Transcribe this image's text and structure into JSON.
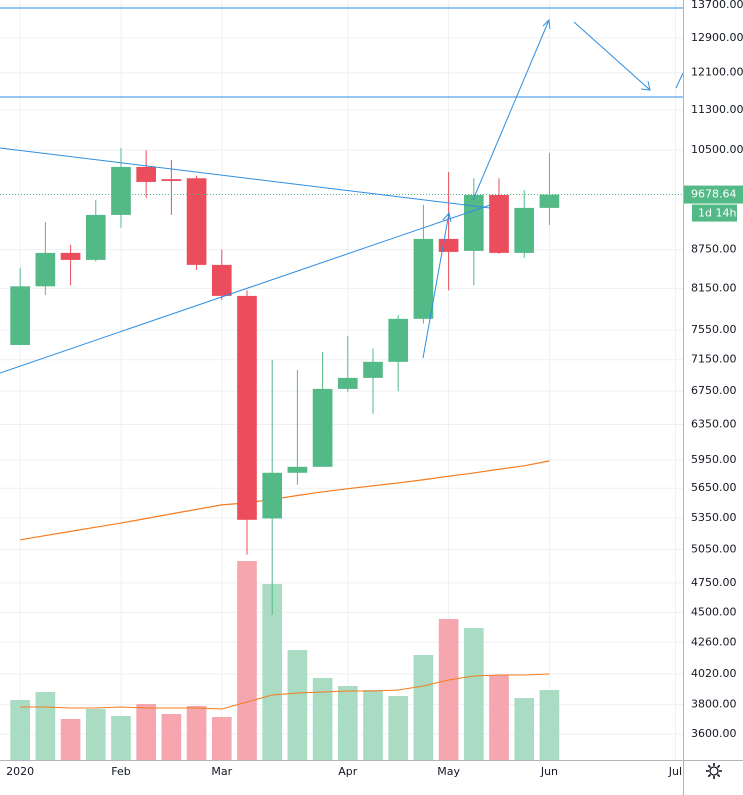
{
  "chart_data": {
    "type": "candlestick",
    "x": [
      0,
      1,
      2,
      3,
      4,
      5,
      6,
      7,
      8,
      9,
      10,
      11,
      12,
      13,
      14,
      15,
      16,
      17,
      18,
      19,
      20,
      21
    ],
    "open": [
      7346,
      8180,
      8697,
      8586,
      9324,
      10181,
      9955,
      9972,
      8508,
      8038,
      5345,
      5812,
      5876,
      6778,
      6916,
      7123,
      7707,
      8923,
      8729,
      9672,
      8697,
      9445
    ],
    "high": [
      8461,
      9205,
      8826,
      9585,
      10542,
      10500,
      10312,
      10022,
      8751,
      8120,
      7149,
      7019,
      7254,
      7469,
      7300,
      7760,
      9497,
      10089,
      9972,
      9972,
      9761,
      10446
    ],
    "low": [
      7346,
      8053,
      8195,
      8560,
      9104,
      9619,
      9324,
      8430,
      7980,
      5001,
      4480,
      5686,
      5876,
      6740,
      6475,
      6750,
      7640,
      8120,
      8195,
      8680,
      8617,
      9154
    ],
    "close": [
      8180,
      8697,
      8586,
      9324,
      10181,
      9905,
      9922,
      8508,
      8038,
      5332,
      5812,
      5876,
      6778,
      6916,
      7123,
      7707,
      8923,
      8713,
      9672,
      8697,
      9445,
      9678.64
    ],
    "volume": [
      60,
      68,
      41,
      51,
      44,
      56,
      46,
      54,
      43,
      199,
      176,
      110,
      82,
      74,
      70,
      64,
      105,
      141,
      132,
      85,
      62,
      70
    ],
    "ma": [
      5140,
      5180,
      5220,
      5260,
      5300,
      5345,
      5390,
      5435,
      5480,
      5500,
      5535,
      5575,
      5613,
      5645,
      5675,
      5705,
      5738,
      5775,
      5810,
      5850,
      5887,
      5940
    ],
    "volume_ma": [
      53,
      53,
      52,
      52,
      53,
      52,
      52,
      52,
      51,
      58,
      65,
      67,
      68,
      69,
      69,
      70,
      74,
      80,
      84,
      85,
      85,
      86
    ],
    "up_color": "#53b987",
    "down_color": "#eb4d5c",
    "volume_up_color": "#a9dcc3",
    "volume_down_color": "#f5a6ae",
    "ma_color": "#f57c1f",
    "countdown": "1d 14h",
    "log_scale": true,
    "grid": true,
    "xlim": [
      -0.8,
      26.3
    ],
    "xticks": [
      {
        "value": 0,
        "label": "2020"
      },
      {
        "value": 4,
        "label": "Feb"
      },
      {
        "value": 8,
        "label": "Mar"
      },
      {
        "value": 13,
        "label": "Apr"
      },
      {
        "value": 17,
        "label": "May"
      },
      {
        "value": 21,
        "label": "Jun"
      },
      {
        "value": 26,
        "label": "Jul"
      }
    ],
    "ylim": [
      3433,
      13826
    ],
    "volume_ylim": [
      0,
      760
    ],
    "yticks": [
      {
        "value": 13700,
        "label": "13700.00"
      },
      {
        "value": 12900,
        "label": "12900.00"
      },
      {
        "value": 12100,
        "label": "12100.00"
      },
      {
        "value": 11300,
        "label": "11300.00"
      },
      {
        "value": 10500,
        "label": "10500.00"
      },
      {
        "value": 8750,
        "label": "8750.00"
      },
      {
        "value": 8150,
        "label": "8150.00"
      },
      {
        "value": 7550,
        "label": "7550.00"
      },
      {
        "value": 7150,
        "label": "7150.00"
      },
      {
        "value": 6750,
        "label": "6750.00"
      },
      {
        "value": 6350,
        "label": "6350.00"
      },
      {
        "value": 5950,
        "label": "5950.00"
      },
      {
        "value": 5650,
        "label": "5650.00"
      },
      {
        "value": 5350,
        "label": "5350.00"
      },
      {
        "value": 5050,
        "label": "5050.00"
      },
      {
        "value": 4750,
        "label": "4750.00"
      },
      {
        "value": 4500,
        "label": "4500.00"
      },
      {
        "value": 4260,
        "label": "4260.00"
      },
      {
        "value": 4020,
        "label": "4020.00"
      },
      {
        "value": 3800,
        "label": "3800.00"
      },
      {
        "value": 3600,
        "label": "3600.00"
      }
    ]
  }
}
